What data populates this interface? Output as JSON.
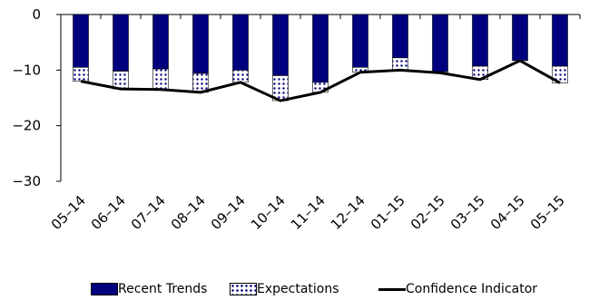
{
  "chart_data": {
    "type": "bar",
    "categories": [
      "05–14",
      "06–14",
      "07–14",
      "08–14",
      "09–14",
      "10–14",
      "11–14",
      "12–14",
      "01–15",
      "02–15",
      "03–15",
      "04–15",
      "05–15"
    ],
    "series": [
      {
        "name": "Recent Trends",
        "kind": "bar",
        "values": [
          -9.5,
          -10.2,
          -9.8,
          -10.6,
          -10.0,
          -11.0,
          -12.2,
          -9.5,
          -7.8,
          -10.3,
          -9.3,
          -8.3,
          -9.3
        ]
      },
      {
        "name": "Expectations",
        "kind": "stacked-bar",
        "values": [
          -2.5,
          -3.2,
          -3.7,
          -3.4,
          -2.2,
          -4.5,
          -1.8,
          -0.9,
          -2.2,
          -0.2,
          -2.4,
          0,
          -3.0
        ]
      },
      {
        "name": "Confidence Indicator",
        "kind": "line",
        "values": [
          -12.0,
          -13.4,
          -13.5,
          -14.0,
          -12.2,
          -15.5,
          -14.0,
          -10.4,
          -10.0,
          -10.5,
          -11.7,
          -8.3,
          -12.3
        ]
      }
    ],
    "yticks": [
      0,
      -10,
      -20,
      -30
    ],
    "ylim": [
      -30,
      0
    ],
    "legend": "bottom",
    "grid": false,
    "colors": {
      "trend": "#00007f",
      "expectations_dots": "#00007f",
      "line": "#000000"
    }
  }
}
